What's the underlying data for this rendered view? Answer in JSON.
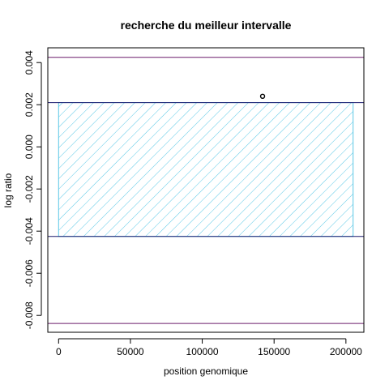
{
  "chart_data": {
    "type": "scatter",
    "title": "recherche du meilleur intervalle",
    "xlabel": "position genomique",
    "ylabel": "log ratio",
    "xlim": [
      -7500,
      212500
    ],
    "ylim": [
      -0.0088,
      0.0047
    ],
    "x_ticks": [
      0,
      50000,
      100000,
      150000,
      200000
    ],
    "x_tick_labels": [
      "0",
      "50000",
      "100000",
      "150000",
      "200000"
    ],
    "y_ticks": [
      -0.008,
      -0.006,
      -0.004,
      -0.002,
      0.0,
      0.002,
      0.004
    ],
    "y_tick_labels": [
      "-0.008",
      "-0.006",
      "-0.004",
      "-0.002",
      "0.000",
      "0.002",
      "0.004"
    ],
    "grid": false,
    "points": [
      {
        "x": 142000,
        "y": 0.0024
      }
    ],
    "interval": {
      "x_start": 0,
      "x_end": 205000,
      "y_low": -0.00425,
      "y_high": 0.0021,
      "fill": "hatched",
      "color": "#5bc8e6"
    },
    "horizontal_lines": [
      {
        "y": 0.00425,
        "color": "#6a1b6a"
      },
      {
        "y": 0.0021,
        "color": "#1a1a6e"
      },
      {
        "y": -0.00425,
        "color": "#1a1a6e"
      },
      {
        "y": -0.00838,
        "color": "#6a1b6a"
      }
    ]
  }
}
